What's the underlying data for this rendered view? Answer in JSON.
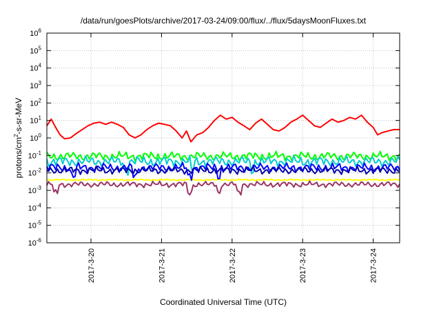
{
  "chart_data": {
    "type": "line",
    "title": "/data/run/goesPlots/archive/2017-03-24/09:00/flux/../flux/5daysMoonFluxes.txt",
    "xlabel": "Coordinated Universal Time (UTC)",
    "ylabel": {
      "prefix": "protons/cm",
      "superscript": "2",
      "suffix": "-s-sr-MeV"
    },
    "y_scale": "log",
    "ylim": [
      1e-06,
      1000000.0
    ],
    "y_ticks": [
      {
        "value": 1e-06,
        "base": "10",
        "exp": "-6"
      },
      {
        "value": 1e-05,
        "base": "10",
        "exp": "-5"
      },
      {
        "value": 0.0001,
        "base": "10",
        "exp": "-4"
      },
      {
        "value": 0.001,
        "base": "10",
        "exp": "-3"
      },
      {
        "value": 0.01,
        "base": "10",
        "exp": "-2"
      },
      {
        "value": 0.1,
        "base": "10",
        "exp": "-1"
      },
      {
        "value": 1.0,
        "base": "10",
        "exp": "0"
      },
      {
        "value": 10.0,
        "base": "10",
        "exp": "1"
      },
      {
        "value": 100.0,
        "base": "10",
        "exp": "2"
      },
      {
        "value": 1000.0,
        "base": "10",
        "exp": "3"
      },
      {
        "value": 10000.0,
        "base": "10",
        "exp": "4"
      },
      {
        "value": 100000.0,
        "base": "10",
        "exp": "5"
      },
      {
        "value": 1000000.0,
        "base": "10",
        "exp": "6"
      }
    ],
    "xlim": [
      "2017-03-19T09:00",
      "2017-03-24T09:00"
    ],
    "x_ticks": [
      {
        "value": "2017-03-20T00:00",
        "label": "2017-3-20"
      },
      {
        "value": "2017-03-21T00:00",
        "label": "2017-3-21"
      },
      {
        "value": "2017-03-22T00:00",
        "label": "2017-3-22"
      },
      {
        "value": "2017-03-23T00:00",
        "label": "2017-3-23"
      },
      {
        "value": "2017-03-24T00:00",
        "label": "2017-3-24"
      }
    ],
    "grid": true,
    "legend": "none",
    "series": [
      {
        "color": "#ff0000",
        "points": [
          [
            "2017-03-19T09:00",
            5
          ],
          [
            "2017-03-19T10:30",
            12
          ],
          [
            "2017-03-19T12:00",
            4
          ],
          [
            "2017-03-19T13:30",
            1.5
          ],
          [
            "2017-03-19T15:00",
            0.9
          ],
          [
            "2017-03-19T17:00",
            1.0
          ],
          [
            "2017-03-19T19:00",
            1.8
          ],
          [
            "2017-03-19T21:00",
            3.0
          ],
          [
            "2017-03-19T23:00",
            5.0
          ],
          [
            "2017-03-20T01:00",
            7.0
          ],
          [
            "2017-03-20T03:00",
            8.0
          ],
          [
            "2017-03-20T05:00",
            6.0
          ],
          [
            "2017-03-20T07:00",
            8.0
          ],
          [
            "2017-03-20T09:00",
            6.0
          ],
          [
            "2017-03-20T11:00",
            4.0
          ],
          [
            "2017-03-20T13:00",
            1.5
          ],
          [
            "2017-03-20T15:00",
            1.0
          ],
          [
            "2017-03-20T17:00",
            1.5
          ],
          [
            "2017-03-20T19:00",
            3.0
          ],
          [
            "2017-03-20T21:00",
            5.0
          ],
          [
            "2017-03-20T23:00",
            7.0
          ],
          [
            "2017-03-21T01:00",
            6.0
          ],
          [
            "2017-03-21T03:00",
            5.0
          ],
          [
            "2017-03-21T05:00",
            2.5
          ],
          [
            "2017-03-21T07:00",
            1.0
          ],
          [
            "2017-03-21T08:30",
            2.5
          ],
          [
            "2017-03-21T10:00",
            0.6
          ],
          [
            "2017-03-21T12:00",
            1.5
          ],
          [
            "2017-03-21T14:00",
            2.0
          ],
          [
            "2017-03-21T16:00",
            4.0
          ],
          [
            "2017-03-21T18:00",
            10.0
          ],
          [
            "2017-03-21T20:00",
            20.0
          ],
          [
            "2017-03-21T22:00",
            12.0
          ],
          [
            "2017-03-22T00:00",
            15.0
          ],
          [
            "2017-03-22T02:00",
            8.0
          ],
          [
            "2017-03-22T04:00",
            5.0
          ],
          [
            "2017-03-22T06:00",
            3.0
          ],
          [
            "2017-03-22T08:00",
            7.0
          ],
          [
            "2017-03-22T10:00",
            12.0
          ],
          [
            "2017-03-22T12:00",
            6.0
          ],
          [
            "2017-03-22T14:00",
            3.0
          ],
          [
            "2017-03-22T16:00",
            2.5
          ],
          [
            "2017-03-22T18:00",
            4.0
          ],
          [
            "2017-03-22T20:00",
            8.0
          ],
          [
            "2017-03-22T22:00",
            12.0
          ],
          [
            "2017-03-23T00:00",
            20.0
          ],
          [
            "2017-03-23T02:00",
            10.0
          ],
          [
            "2017-03-23T04:00",
            5.0
          ],
          [
            "2017-03-23T06:00",
            4.0
          ],
          [
            "2017-03-23T08:00",
            7.0
          ],
          [
            "2017-03-23T10:00",
            12.0
          ],
          [
            "2017-03-23T12:00",
            8.0
          ],
          [
            "2017-03-23T14:00",
            10.0
          ],
          [
            "2017-03-23T16:00",
            15.0
          ],
          [
            "2017-03-23T18:00",
            12.0
          ],
          [
            "2017-03-23T20:00",
            20.0
          ],
          [
            "2017-03-23T22:00",
            8.0
          ],
          [
            "2017-03-24T00:00",
            4.0
          ],
          [
            "2017-03-24T01:30",
            1.5
          ],
          [
            "2017-03-24T03:00",
            2.0
          ],
          [
            "2017-03-24T05:00",
            2.5
          ],
          [
            "2017-03-24T07:00",
            3.0
          ],
          [
            "2017-03-24T09:00",
            3.0
          ]
        ]
      },
      {
        "color": "#00ff00",
        "base": 0.09,
        "amplitude": 0.3,
        "dips": [],
        "points": []
      },
      {
        "color": "#00cccc",
        "base": 0.045,
        "amplitude": 0.35,
        "dips": [
          "2017-03-20T12:00",
          "2017-03-21T10:30",
          "2017-03-22T07:00"
        ],
        "points": []
      },
      {
        "color": "#0000ff",
        "base": 0.02,
        "amplitude": 0.3,
        "dips": [
          "2017-03-19T18:00",
          "2017-03-20T15:00",
          "2017-03-21T09:30",
          "2017-03-21T19:30"
        ],
        "points": []
      },
      {
        "color": "#0000aa",
        "base": 0.014,
        "amplitude": 0.25,
        "dips": [],
        "points": []
      },
      {
        "color": "#ffff00",
        "base": 0.004,
        "amplitude": 0.05,
        "dips": [],
        "points": []
      },
      {
        "color": "#993366",
        "base": 0.0022,
        "amplitude": 0.2,
        "dips": [
          "2017-03-19T12:00",
          "2017-03-21T09:30",
          "2017-03-21T19:30",
          "2017-03-22T02:30"
        ],
        "points": []
      }
    ]
  }
}
